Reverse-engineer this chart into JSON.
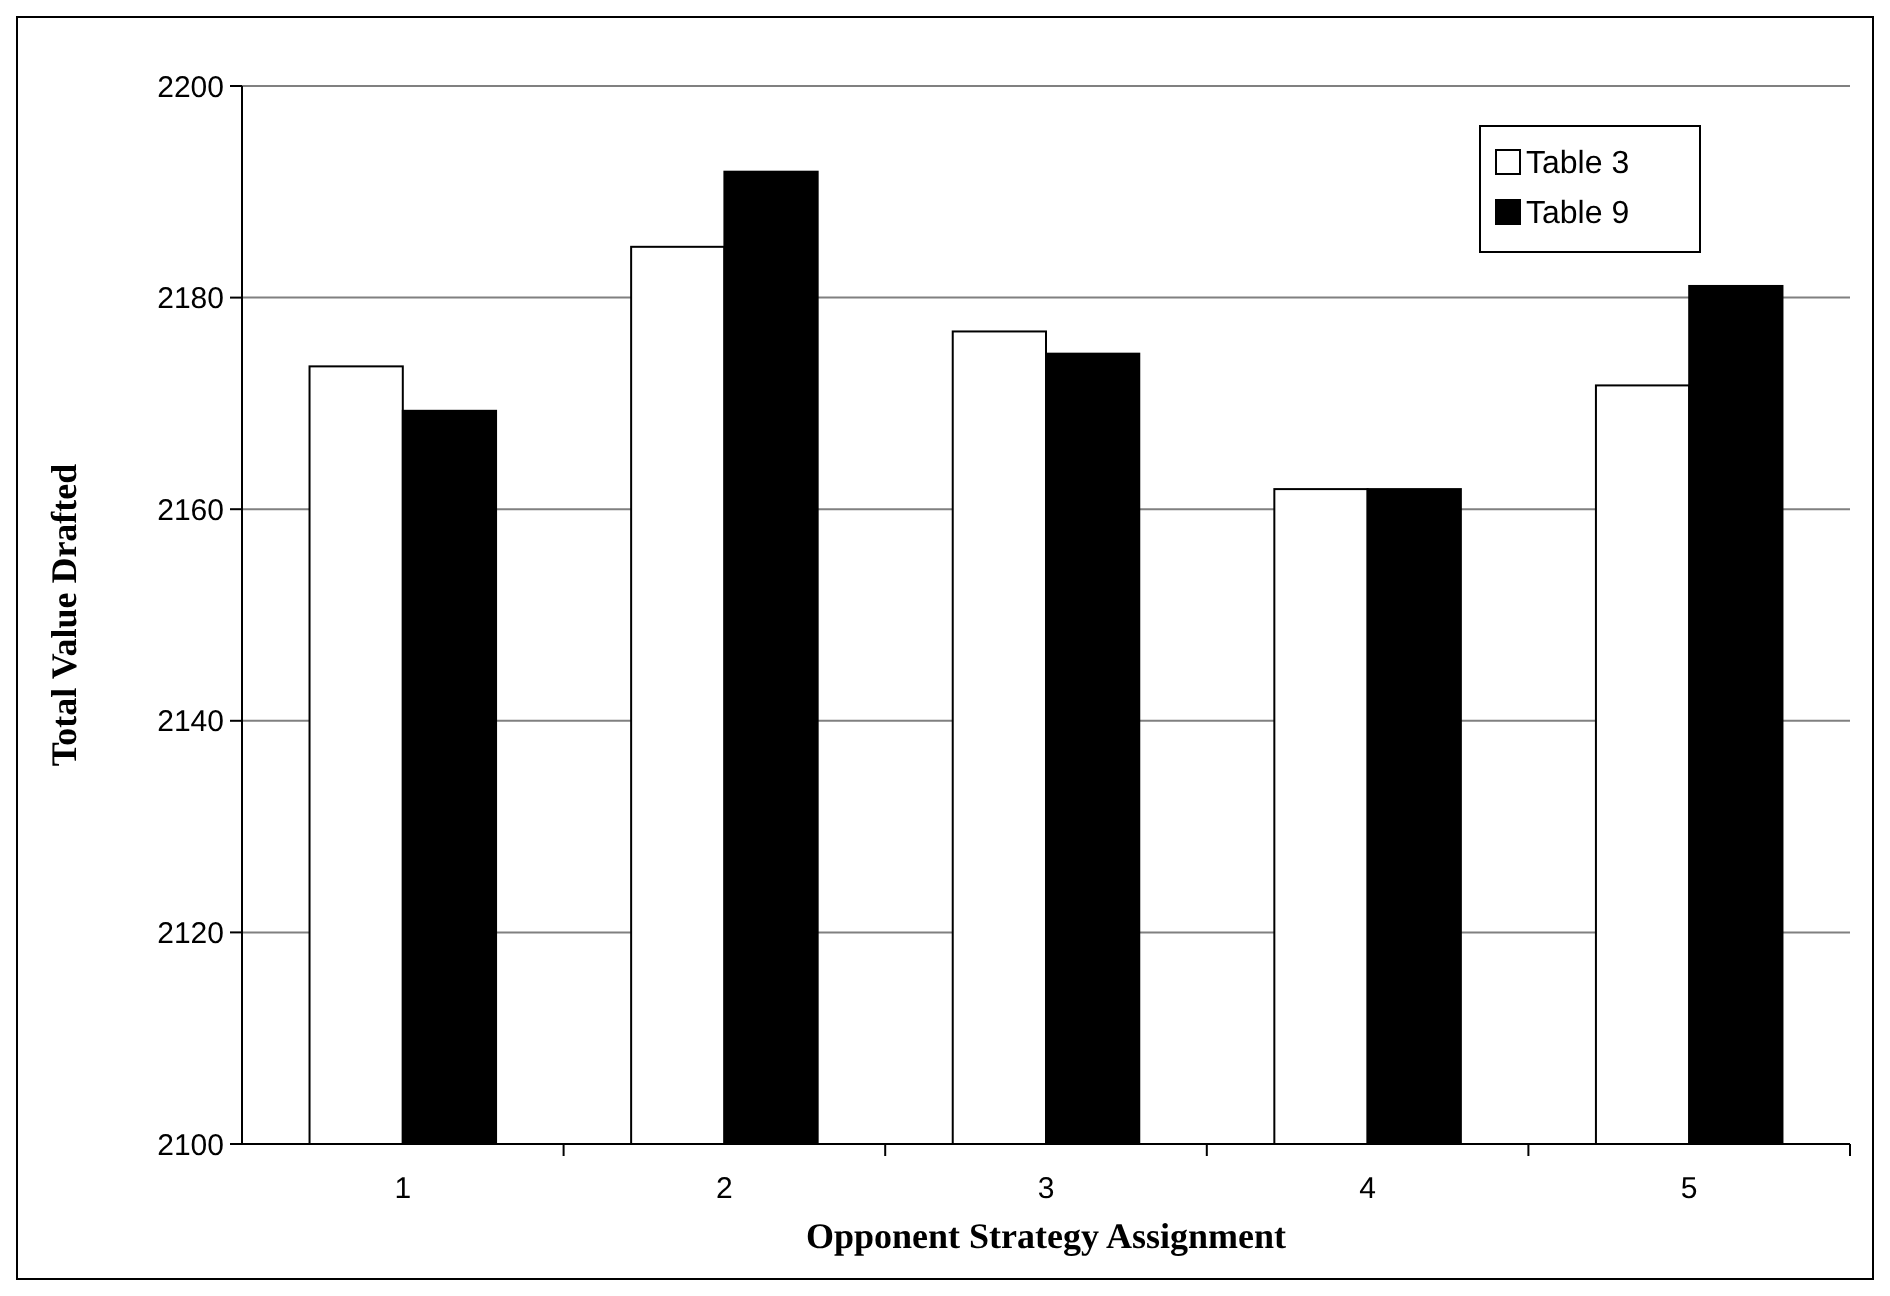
{
  "chart_data": {
    "type": "bar",
    "xlabel": "Opponent Strategy Assignment",
    "ylabel": "Total Value Drafted",
    "categories": [
      "1",
      "2",
      "3",
      "4",
      "5"
    ],
    "series": [
      {
        "name": "Table 3",
        "color": "#ffffff",
        "values": [
          2173.5,
          2184.8,
          2176.8,
          2161.9,
          2171.7
        ]
      },
      {
        "name": "Table 9",
        "color": "#000000",
        "values": [
          2169.3,
          2191.9,
          2174.7,
          2161.9,
          2181.1
        ]
      }
    ],
    "ylim": [
      2100,
      2200
    ],
    "yticks": [
      2100,
      2120,
      2140,
      2160,
      2180,
      2200
    ],
    "grid": "y",
    "legend": "top right"
  }
}
